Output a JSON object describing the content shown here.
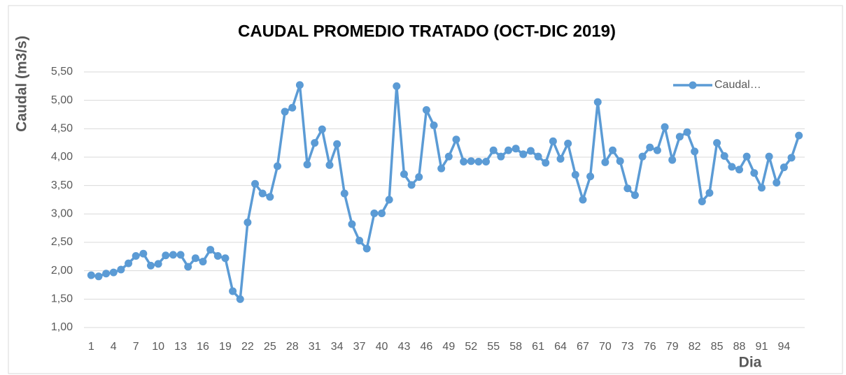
{
  "chart_data": {
    "type": "line",
    "title": "CAUDAL PROMEDIO TRATADO (OCT-DIC 2019)",
    "y_label": "Caudal (m3/s)",
    "x_label": "Dia",
    "legend": "top-right",
    "grid": true,
    "categories": [
      1,
      null,
      null,
      4,
      null,
      null,
      7,
      null,
      null,
      10,
      null,
      null,
      13,
      null,
      null,
      16,
      null,
      null,
      19,
      null,
      null,
      22,
      null,
      null,
      25,
      null,
      null,
      28,
      null,
      null,
      31,
      null,
      null,
      34,
      null,
      null,
      37,
      null,
      null,
      40,
      null,
      null,
      43,
      null,
      null,
      46,
      null,
      null,
      49,
      null,
      null,
      52,
      null,
      null,
      55,
      null,
      null,
      58,
      null,
      null,
      61,
      null,
      null,
      64,
      null,
      null,
      67,
      null,
      null,
      70,
      null,
      null,
      73,
      null,
      null,
      76,
      null,
      null,
      79,
      null,
      null,
      82,
      null,
      null,
      85,
      null,
      null,
      88,
      null,
      null,
      91,
      null,
      null,
      94,
      null,
      null
    ],
    "series": [
      {
        "name": "Caudal…",
        "color": "#5b9bd5",
        "values": [
          1.92,
          1.9,
          1.95,
          1.97,
          2.02,
          2.13,
          2.26,
          2.3,
          2.09,
          2.12,
          2.27,
          2.28,
          2.28,
          2.07,
          2.22,
          2.16,
          2.37,
          2.26,
          2.22,
          1.64,
          1.5,
          2.85,
          3.53,
          3.36,
          3.3,
          3.84,
          4.8,
          4.87,
          5.27,
          3.87,
          4.25,
          4.49,
          3.86,
          4.23,
          3.36,
          2.82,
          2.53,
          2.39,
          3.01,
          3.01,
          3.25,
          5.25,
          3.7,
          3.51,
          3.65,
          4.83,
          4.56,
          3.8,
          4.01,
          4.31,
          3.92,
          3.93,
          3.92,
          3.92,
          4.12,
          4.01,
          4.12,
          4.15,
          4.05,
          4.11,
          4.01,
          3.9,
          4.28,
          3.97,
          4.24,
          3.69,
          3.25,
          3.66,
          4.97,
          3.91,
          4.12,
          3.93,
          3.45,
          3.33,
          4.01,
          4.17,
          4.12,
          4.53,
          3.95,
          4.36,
          4.44,
          4.1,
          3.22,
          3.37,
          4.25,
          4.02,
          3.83,
          3.78,
          4.01,
          3.72,
          3.46,
          4.01,
          3.55,
          3.82,
          3.99,
          4.38
        ]
      }
    ],
    "ylim": [
      1,
      5.5
    ],
    "yticks": [
      {
        "value": 1,
        "label": "1,00"
      },
      {
        "value": 1.5,
        "label": "1,50"
      },
      {
        "value": 2,
        "label": "2,00"
      },
      {
        "value": 2.5,
        "label": "2,50"
      },
      {
        "value": 3,
        "label": "3,00"
      },
      {
        "value": 3.5,
        "label": "3,50"
      },
      {
        "value": 4,
        "label": "4,00"
      },
      {
        "value": 4.5,
        "label": "4,50"
      },
      {
        "value": 5,
        "label": "5,00"
      },
      {
        "value": 5.5,
        "label": "5,50"
      }
    ]
  }
}
